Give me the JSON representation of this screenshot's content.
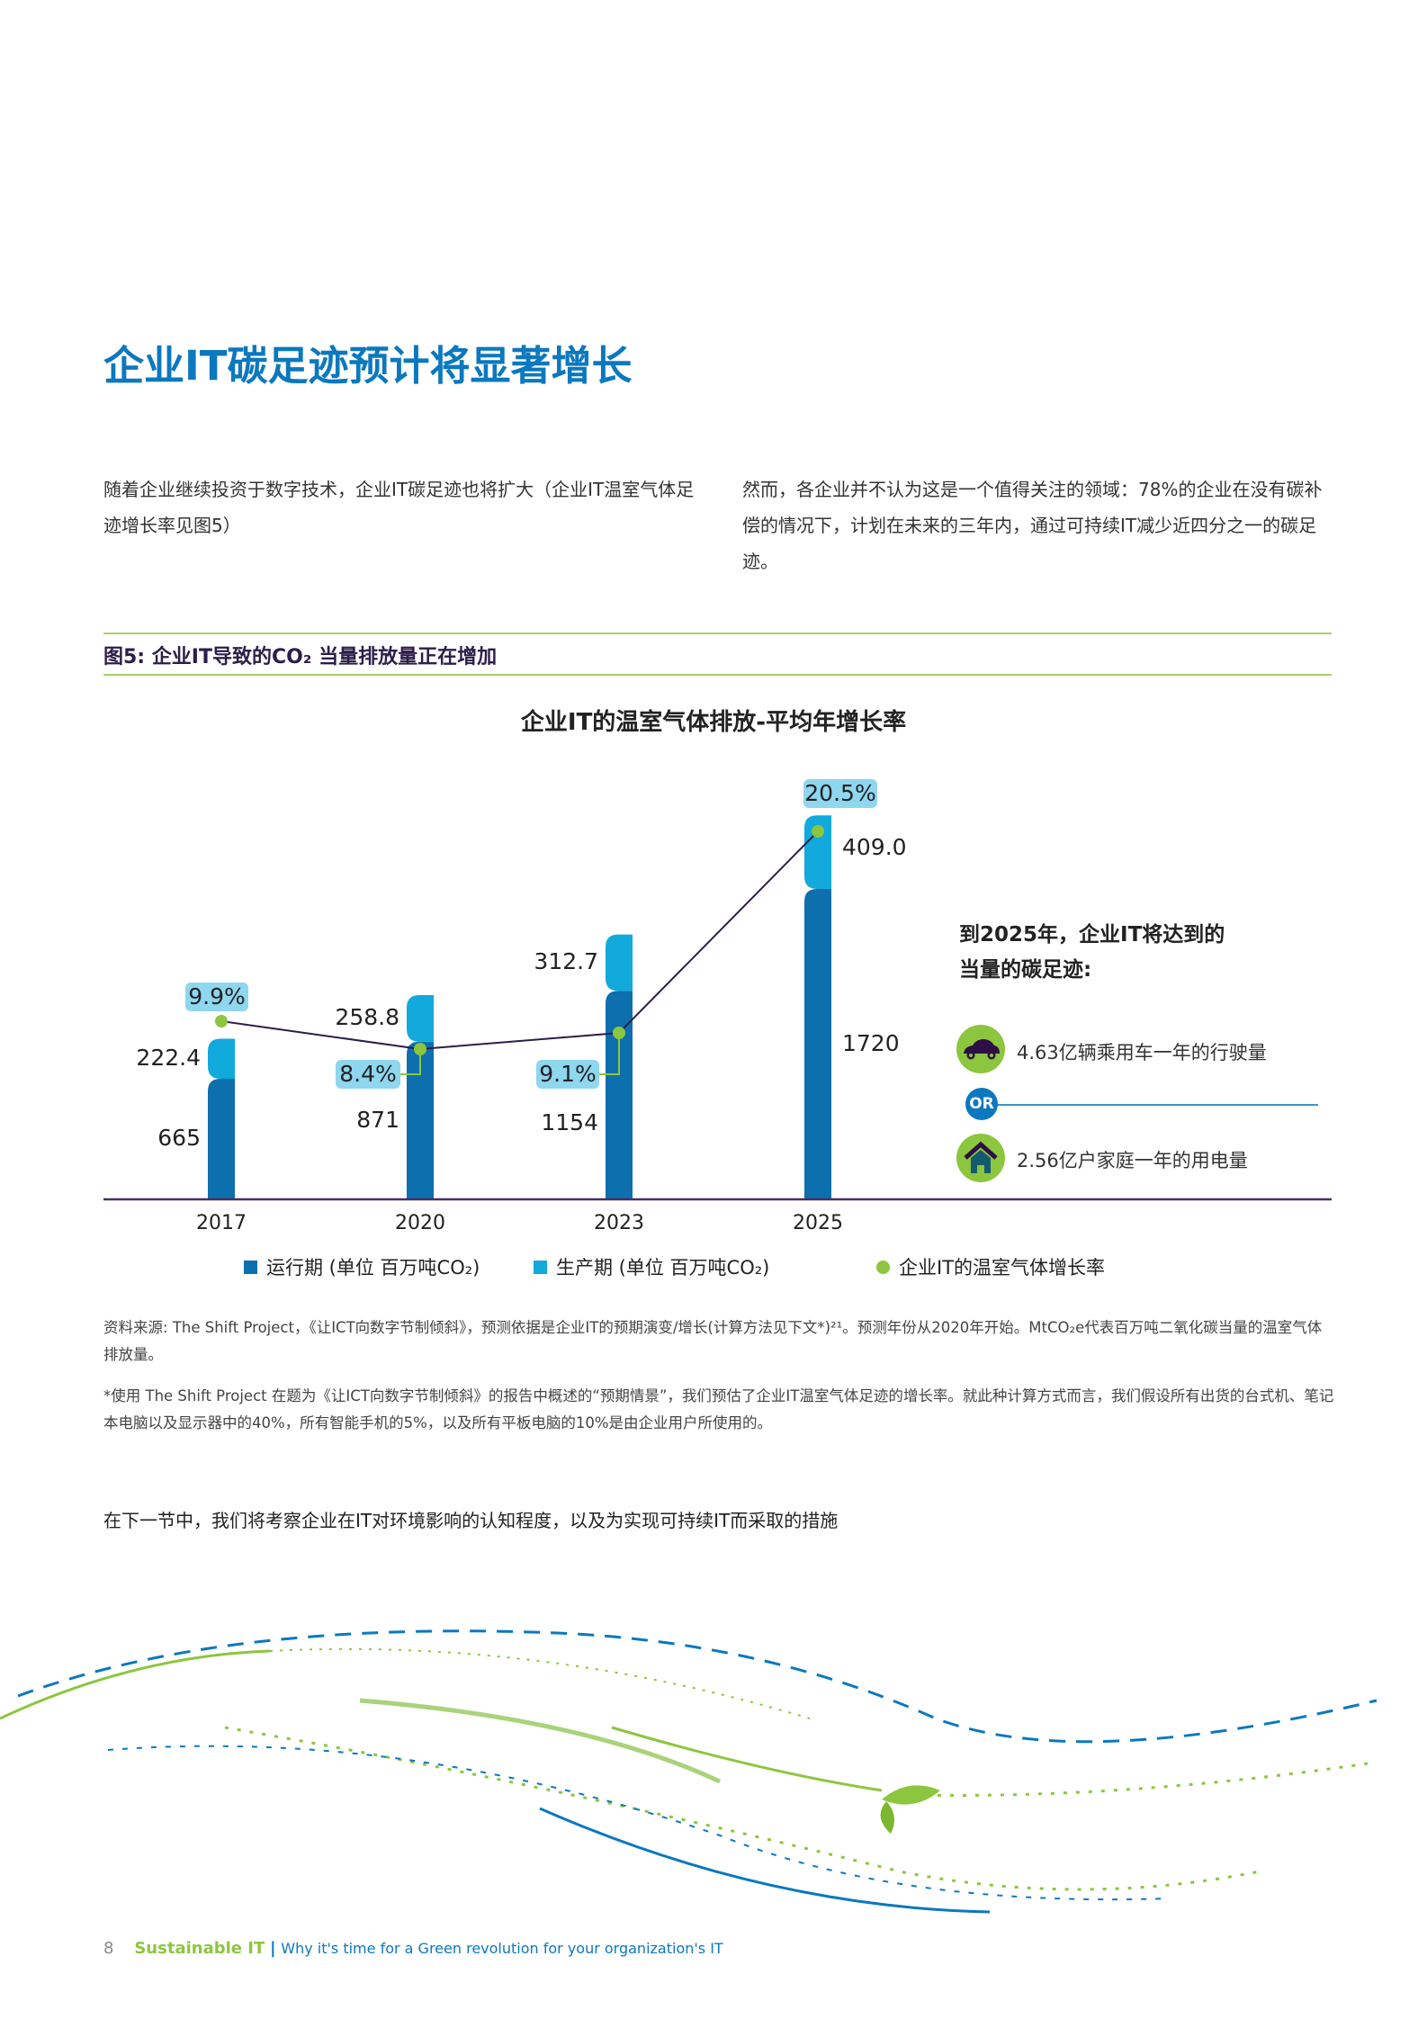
{
  "title": "企业IT碳足迹预计将显著增长",
  "intro_left": "随着企业继续投资于数字技术，企业IT碳足迹也将扩大（企业IT温室气体足迹增长率见图5）",
  "intro_right": "然而，各企业并不认为这是一个值得关注的领域：78%的企业在没有碳补偿的情况下，计划在未来的三年内，通过可持续IT减少近四分之一的碳足迹。",
  "figure_heading": "图5: 企业IT导致的CO₂ 当量排放量正在增加",
  "chart_data": {
    "type": "bar",
    "title": "企业IT的温室气体排放-平均年增长率",
    "categories": [
      "2017",
      "2020",
      "2023",
      "2025"
    ],
    "stacked": true,
    "series": [
      {
        "name": "运行期 (单位 百万吨CO₂)",
        "values": [
          665,
          871,
          1154,
          1720
        ],
        "color": "#0e6fae"
      },
      {
        "name": "生产期 (单位 百万吨CO₂)",
        "values": [
          222.4,
          258.8,
          312.7,
          409.0
        ],
        "color": "#12a9dc"
      }
    ],
    "line_series": {
      "name": "企业IT的温室气体增长率",
      "values": [
        "9.9%",
        "8.4%",
        "9.1%",
        "20.5%"
      ],
      "color": "#8cc63f"
    },
    "legend_position": "bottom",
    "grid": false
  },
  "panel": {
    "title_line1": "到2025年，企业IT将达到的",
    "title_line2": "当量的碳足迹:",
    "item1": "4.63亿辆乘用车一年的行驶量",
    "or_label": "OR",
    "item2": "2.56亿户家庭一年的用电量"
  },
  "notes": {
    "source": "资料来源: The Shift Project，《让ICT向数字节制倾斜》，预测依据是企业IT的预期演变/增长(计算方法见下文*)²¹。预测年份从2020年开始。MtCO₂e代表百万吨二氧化碳当量的温室气体排放量。",
    "method": "*使用 The Shift Project 在题为《让ICT向数字节制倾斜》的报告中概述的“预期情景”，我们预估了企业IT温室气体足迹的增长率。就此种计算方式而言，我们假设所有出货的台式机、笔记本电脑以及显示器中的40%，所有智能手机的5%，以及所有平板电脑的10%是由企业用户所使用的。"
  },
  "next_section": "在下一节中，我们将考察企业在IT对环境影响的认知程度，以及为实现可持续IT而采取的措施",
  "footer": {
    "page": "8",
    "brand": "Sustainable IT",
    "separator": "|",
    "subtitle": "Why it's time for a Green revolution for your organization's IT"
  },
  "colors": {
    "heading": "#0b78bf",
    "green": "#8cc63f",
    "dark_bar": "#0e6fae",
    "light_bar": "#12a9dc",
    "label_bg": "#8fd6ef"
  }
}
